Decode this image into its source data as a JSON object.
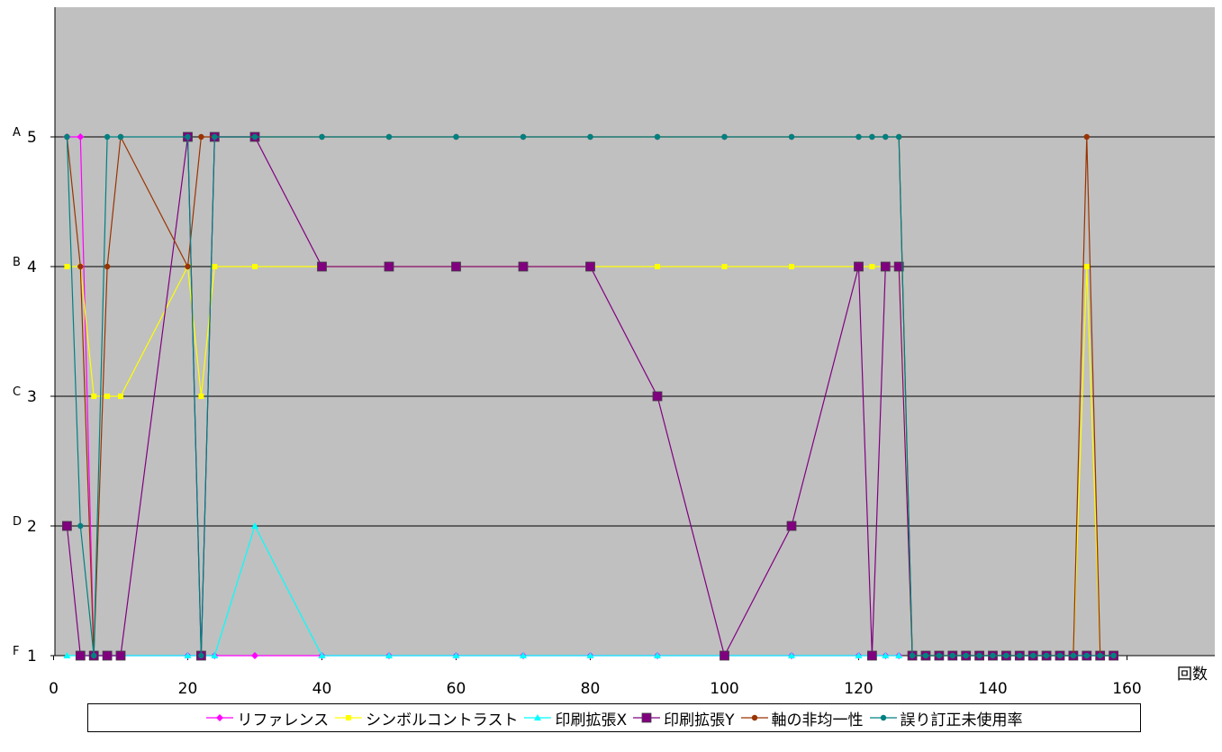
{
  "chart_data": {
    "type": "line",
    "title": "",
    "xlabel": "回数",
    "ylabel": "",
    "xlim": [
      0,
      160
    ],
    "ylim": [
      1,
      5
    ],
    "x_ticks": [
      "0",
      "20",
      "40",
      "60",
      "80",
      "100",
      "120",
      "140",
      "160"
    ],
    "y_ticks": [
      {
        "value": 1,
        "label": "1",
        "grade": "F"
      },
      {
        "value": 2,
        "label": "2",
        "grade": "D"
      },
      {
        "value": 3,
        "label": "3",
        "grade": "C"
      },
      {
        "value": 4,
        "label": "4",
        "grade": "B"
      },
      {
        "value": 5,
        "label": "5",
        "grade": "A"
      }
    ],
    "grid": true,
    "plot_background": "#c0c0c0",
    "legend_position": "bottom",
    "series": [
      {
        "name": "リファレンス",
        "color": "#ff00ff",
        "marker": "diamond",
        "points": [
          [
            2,
            5
          ],
          [
            4,
            5
          ],
          [
            6,
            1
          ],
          [
            8,
            1
          ],
          [
            10,
            1
          ],
          [
            20,
            1
          ],
          [
            22,
            1
          ],
          [
            24,
            1
          ],
          [
            30,
            1
          ],
          [
            40,
            1
          ],
          [
            50,
            1
          ],
          [
            60,
            1
          ],
          [
            70,
            1
          ],
          [
            80,
            1
          ],
          [
            90,
            1
          ],
          [
            100,
            1
          ],
          [
            110,
            1
          ],
          [
            120,
            1
          ],
          [
            122,
            1
          ],
          [
            124,
            1
          ],
          [
            126,
            1
          ]
        ]
      },
      {
        "name": "シンボルコントラスト",
        "color": "#ffff00",
        "marker": "square",
        "points": [
          [
            2,
            4
          ],
          [
            4,
            4
          ],
          [
            6,
            3
          ],
          [
            8,
            3
          ],
          [
            10,
            3
          ],
          [
            20,
            4
          ],
          [
            22,
            3
          ],
          [
            24,
            4
          ],
          [
            30,
            4
          ],
          [
            40,
            4
          ],
          [
            50,
            4
          ],
          [
            60,
            4
          ],
          [
            70,
            4
          ],
          [
            80,
            4
          ],
          [
            90,
            4
          ],
          [
            100,
            4
          ],
          [
            110,
            4
          ],
          [
            120,
            4
          ],
          [
            122,
            4
          ],
          [
            124,
            4
          ],
          [
            126,
            4
          ],
          [
            128,
            1
          ],
          [
            130,
            1
          ],
          [
            132,
            1
          ],
          [
            134,
            1
          ],
          [
            136,
            1
          ],
          [
            138,
            1
          ],
          [
            140,
            1
          ],
          [
            142,
            1
          ],
          [
            144,
            1
          ],
          [
            146,
            1
          ],
          [
            148,
            1
          ],
          [
            150,
            1
          ],
          [
            152,
            1
          ],
          [
            154,
            4
          ],
          [
            156,
            1
          ],
          [
            158,
            1
          ]
        ]
      },
      {
        "name": "印刷拡張X",
        "color": "#00ffff",
        "marker": "triangle",
        "points": [
          [
            2,
            1
          ],
          [
            4,
            1
          ],
          [
            6,
            1
          ],
          [
            8,
            1
          ],
          [
            10,
            1
          ],
          [
            20,
            1
          ],
          [
            22,
            1
          ],
          [
            24,
            1
          ],
          [
            30,
            2
          ],
          [
            40,
            1
          ],
          [
            50,
            1
          ],
          [
            60,
            1
          ],
          [
            70,
            1
          ],
          [
            80,
            1
          ],
          [
            90,
            1
          ],
          [
            100,
            1
          ],
          [
            110,
            1
          ],
          [
            120,
            1
          ],
          [
            122,
            1
          ],
          [
            124,
            1
          ],
          [
            126,
            1
          ]
        ]
      },
      {
        "name": "印刷拡張Y",
        "color": "#800080",
        "marker": "bigsquare",
        "points": [
          [
            2,
            2
          ],
          [
            4,
            1
          ],
          [
            6,
            1
          ],
          [
            8,
            1
          ],
          [
            10,
            1
          ],
          [
            20,
            5
          ],
          [
            22,
            1
          ],
          [
            24,
            5
          ],
          [
            30,
            5
          ],
          [
            40,
            4
          ],
          [
            50,
            4
          ],
          [
            60,
            4
          ],
          [
            70,
            4
          ],
          [
            80,
            4
          ],
          [
            90,
            3
          ],
          [
            100,
            1
          ],
          [
            110,
            2
          ],
          [
            120,
            4
          ],
          [
            122,
            1
          ],
          [
            124,
            4
          ],
          [
            126,
            4
          ],
          [
            128,
            1
          ],
          [
            130,
            1
          ],
          [
            132,
            1
          ],
          [
            134,
            1
          ],
          [
            136,
            1
          ],
          [
            138,
            1
          ],
          [
            140,
            1
          ],
          [
            142,
            1
          ],
          [
            144,
            1
          ],
          [
            146,
            1
          ],
          [
            148,
            1
          ],
          [
            150,
            1
          ],
          [
            152,
            1
          ],
          [
            154,
            1
          ],
          [
            156,
            1
          ],
          [
            158,
            1
          ]
        ]
      },
      {
        "name": "軸の非均一性",
        "color": "#993300",
        "marker": "circle",
        "points": [
          [
            2,
            5
          ],
          [
            4,
            4
          ],
          [
            6,
            1
          ],
          [
            8,
            4
          ],
          [
            10,
            5
          ],
          [
            20,
            4
          ],
          [
            22,
            5
          ],
          [
            24,
            5
          ],
          [
            30,
            5
          ],
          [
            40,
            5
          ],
          [
            50,
            5
          ],
          [
            60,
            5
          ],
          [
            70,
            5
          ],
          [
            80,
            5
          ],
          [
            90,
            5
          ],
          [
            100,
            5
          ],
          [
            110,
            5
          ],
          [
            120,
            5
          ],
          [
            122,
            5
          ],
          [
            124,
            5
          ],
          [
            126,
            5
          ],
          [
            128,
            1
          ],
          [
            130,
            1
          ],
          [
            132,
            1
          ],
          [
            134,
            1
          ],
          [
            136,
            1
          ],
          [
            138,
            1
          ],
          [
            140,
            1
          ],
          [
            142,
            1
          ],
          [
            144,
            1
          ],
          [
            146,
            1
          ],
          [
            148,
            1
          ],
          [
            150,
            1
          ],
          [
            152,
            1
          ],
          [
            154,
            5
          ],
          [
            156,
            1
          ],
          [
            158,
            1
          ]
        ]
      },
      {
        "name": "誤り訂正未使用率",
        "color": "#008080",
        "marker": "circle",
        "points": [
          [
            2,
            5
          ],
          [
            4,
            2
          ],
          [
            6,
            1
          ],
          [
            8,
            5
          ],
          [
            10,
            5
          ],
          [
            20,
            5
          ],
          [
            22,
            1
          ],
          [
            24,
            5
          ],
          [
            30,
            5
          ],
          [
            40,
            5
          ],
          [
            50,
            5
          ],
          [
            60,
            5
          ],
          [
            70,
            5
          ],
          [
            80,
            5
          ],
          [
            90,
            5
          ],
          [
            100,
            5
          ],
          [
            110,
            5
          ],
          [
            120,
            5
          ],
          [
            122,
            5
          ],
          [
            124,
            5
          ],
          [
            126,
            5
          ],
          [
            128,
            1
          ],
          [
            130,
            1
          ],
          [
            132,
            1
          ],
          [
            134,
            1
          ],
          [
            136,
            1
          ],
          [
            138,
            1
          ],
          [
            140,
            1
          ],
          [
            142,
            1
          ],
          [
            144,
            1
          ],
          [
            146,
            1
          ],
          [
            148,
            1
          ],
          [
            150,
            1
          ],
          [
            152,
            1
          ],
          [
            154,
            1
          ],
          [
            156,
            1
          ],
          [
            158,
            1
          ]
        ]
      }
    ]
  }
}
